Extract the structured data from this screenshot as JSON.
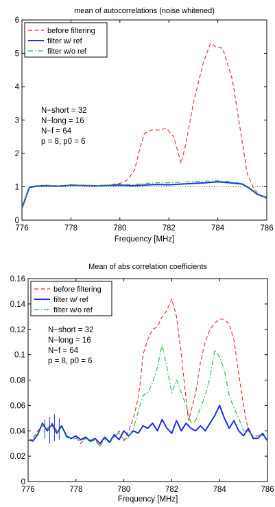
{
  "chart_data": [
    {
      "type": "line",
      "title": "mean of autocorrelations (noise whitened)",
      "xlabel": "Frequency [MHz]",
      "ylabel": "",
      "xlim": [
        776,
        786
      ],
      "ylim": [
        0,
        6
      ],
      "xticks": [
        "776",
        "778",
        "780",
        "782",
        "784",
        "786"
      ],
      "yticks": [
        "0",
        "1",
        "2",
        "3",
        "4",
        "5",
        "6"
      ],
      "legend_position": "top-left",
      "reference_line": {
        "y": 1,
        "style": "dotted"
      },
      "annotations": [
        "N−short = 32",
        "N−long  = 16",
        "N−f  = 64",
        "p = 8, p0 = 6"
      ],
      "series": [
        {
          "name": "before filtering",
          "color": "#e8262a",
          "dash": "dashed",
          "x": [
            776,
            776.3,
            776.6,
            777,
            777.5,
            778,
            778.5,
            779,
            779.5,
            780,
            780.3,
            780.6,
            780.8,
            781,
            781.3,
            781.6,
            781.9,
            782.2,
            782.5,
            782.7,
            783,
            783.4,
            783.7,
            783.9,
            784.2,
            784.6,
            784.9,
            785.2,
            785.5,
            785.8,
            786
          ],
          "y": [
            0.4,
            1.0,
            1.03,
            1.05,
            1.0,
            1.05,
            1.03,
            1.02,
            1.05,
            1.1,
            1.2,
            1.5,
            2.1,
            2.6,
            2.7,
            2.7,
            2.75,
            2.5,
            1.7,
            2.3,
            3.5,
            4.7,
            5.3,
            5.2,
            5.15,
            4.2,
            2.8,
            1.4,
            0.9,
            0.7,
            0.65
          ]
        },
        {
          "name": "filter w/ ref",
          "color": "#1a2ee6",
          "dash": "solid",
          "x": [
            776,
            776.3,
            776.6,
            777,
            777.5,
            778,
            778.5,
            779,
            779.5,
            780,
            780.5,
            781,
            781.5,
            782,
            782.5,
            783,
            783.5,
            784,
            784.5,
            785,
            785.3,
            785.6,
            786
          ],
          "y": [
            0.35,
            0.98,
            1.02,
            1.03,
            1.02,
            1.05,
            1.04,
            1.03,
            1.04,
            1.05,
            1.03,
            1.05,
            1.07,
            1.06,
            1.08,
            1.1,
            1.12,
            1.15,
            1.12,
            1.08,
            0.95,
            0.78,
            0.68
          ]
        },
        {
          "name": "filter w/o ref",
          "color": "#19b83a",
          "dash": "dashdot",
          "x": [
            776,
            776.3,
            776.6,
            777,
            777.5,
            778,
            778.5,
            779,
            779.5,
            780,
            780.5,
            781,
            781.5,
            782,
            782.5,
            783,
            783.5,
            784,
            784.5,
            785,
            785.3,
            785.6,
            786
          ],
          "y": [
            0.35,
            1.0,
            1.03,
            1.05,
            1.03,
            1.06,
            1.05,
            1.04,
            1.05,
            1.08,
            1.06,
            1.1,
            1.12,
            1.12,
            1.14,
            1.16,
            1.17,
            1.18,
            1.15,
            1.1,
            0.97,
            0.8,
            0.68
          ]
        }
      ]
    },
    {
      "type": "line",
      "title": "Mean of abs correlation coefficients",
      "xlabel": "Frequency [MHz]",
      "ylabel": "",
      "xlim": [
        776,
        786
      ],
      "ylim": [
        0,
        0.16
      ],
      "xticks": [
        "776",
        "778",
        "780",
        "782",
        "784",
        "786"
      ],
      "yticks": [
        "0",
        "0.02",
        "0.04",
        "0.06",
        "0.08",
        "0.1",
        "0.12",
        "0.14",
        "0.16"
      ],
      "legend_position": "top-left",
      "annotations": [
        "N−short = 32",
        "N−long  = 16",
        "N−f  = 64",
        "p = 8, p0 = 6"
      ],
      "error_bars": {
        "series": "filter w/ ref",
        "x": [
          776.7,
          776.9,
          777.1,
          777.3
        ],
        "low": [
          0.034,
          0.03,
          0.032,
          0.033
        ],
        "high": [
          0.049,
          0.051,
          0.053,
          0.05
        ]
      },
      "series": [
        {
          "name": "before filtering",
          "color": "#e8262a",
          "dash": "dashed",
          "x": [
            776,
            776.2,
            776.4,
            776.6,
            776.8,
            777,
            777.2,
            777.4,
            777.6,
            777.8,
            778,
            778.2,
            778.4,
            778.6,
            778.8,
            779,
            779.2,
            779.4,
            779.6,
            779.8,
            780,
            780.2,
            780.4,
            780.6,
            780.7,
            780.8,
            781,
            781.2,
            781.4,
            781.6,
            781.8,
            782,
            782.2,
            782.4,
            782.6,
            782.7,
            782.8,
            783,
            783.2,
            783.4,
            783.6,
            783.8,
            784,
            784.2,
            784.4,
            784.6,
            784.8,
            785,
            785.2,
            785.4,
            785.6,
            785.8,
            786
          ],
          "y": [
            0.032,
            0.034,
            0.04,
            0.044,
            0.042,
            0.046,
            0.04,
            0.044,
            0.036,
            0.034,
            0.035,
            0.03,
            0.034,
            0.033,
            0.032,
            0.028,
            0.034,
            0.031,
            0.035,
            0.04,
            0.032,
            0.04,
            0.05,
            0.066,
            0.08,
            0.1,
            0.112,
            0.12,
            0.122,
            0.13,
            0.135,
            0.144,
            0.13,
            0.1,
            0.065,
            0.048,
            0.055,
            0.07,
            0.094,
            0.11,
            0.12,
            0.125,
            0.128,
            0.128,
            0.124,
            0.112,
            0.085,
            0.06,
            0.04,
            0.035,
            0.036,
            0.038,
            0.032
          ]
        },
        {
          "name": "filter w/ ref",
          "color": "#1a2ee6",
          "dash": "solid",
          "x": [
            776,
            776.2,
            776.4,
            776.6,
            776.8,
            777,
            777.2,
            777.4,
            777.6,
            777.8,
            778,
            778.2,
            778.4,
            778.6,
            778.8,
            779,
            779.2,
            779.4,
            779.6,
            779.8,
            780,
            780.2,
            780.4,
            780.6,
            780.8,
            781,
            781.2,
            781.4,
            781.6,
            781.8,
            782,
            782.2,
            782.4,
            782.6,
            782.8,
            783,
            783.2,
            783.4,
            783.6,
            783.8,
            784,
            784.2,
            784.4,
            784.6,
            784.8,
            785,
            785.2,
            785.4,
            785.6,
            785.8,
            786
          ],
          "y": [
            0.033,
            0.032,
            0.037,
            0.046,
            0.04,
            0.045,
            0.038,
            0.044,
            0.036,
            0.034,
            0.036,
            0.033,
            0.035,
            0.032,
            0.034,
            0.03,
            0.035,
            0.031,
            0.037,
            0.033,
            0.04,
            0.036,
            0.04,
            0.038,
            0.044,
            0.042,
            0.046,
            0.04,
            0.049,
            0.042,
            0.038,
            0.048,
            0.04,
            0.046,
            0.042,
            0.04,
            0.044,
            0.04,
            0.046,
            0.052,
            0.06,
            0.05,
            0.042,
            0.048,
            0.04,
            0.036,
            0.042,
            0.034,
            0.034,
            0.038,
            0.032
          ]
        },
        {
          "name": "filter w/o ref",
          "color": "#19b83a",
          "dash": "dashdot",
          "x": [
            776,
            776.2,
            776.4,
            776.6,
            776.8,
            777,
            777.2,
            777.4,
            777.6,
            777.8,
            778,
            778.2,
            778.4,
            778.6,
            778.8,
            779,
            779.2,
            779.4,
            779.6,
            779.8,
            780,
            780.2,
            780.4,
            780.6,
            780.8,
            781,
            781.2,
            781.4,
            781.6,
            781.8,
            782,
            782.2,
            782.4,
            782.6,
            782.8,
            783,
            783.2,
            783.4,
            783.6,
            783.8,
            784,
            784.2,
            784.4,
            784.6,
            784.8,
            785,
            785.2,
            785.4,
            785.6,
            785.8,
            786
          ],
          "y": [
            0.033,
            0.033,
            0.038,
            0.045,
            0.041,
            0.044,
            0.039,
            0.043,
            0.035,
            0.033,
            0.034,
            0.032,
            0.034,
            0.031,
            0.033,
            0.028,
            0.034,
            0.03,
            0.036,
            0.038,
            0.033,
            0.035,
            0.042,
            0.055,
            0.068,
            0.07,
            0.078,
            0.09,
            0.108,
            0.09,
            0.07,
            0.08,
            0.07,
            0.06,
            0.046,
            0.048,
            0.058,
            0.068,
            0.082,
            0.104,
            0.098,
            0.088,
            0.068,
            0.058,
            0.05,
            0.04,
            0.04,
            0.036,
            0.036,
            0.036,
            0.032
          ]
        }
      ]
    }
  ]
}
